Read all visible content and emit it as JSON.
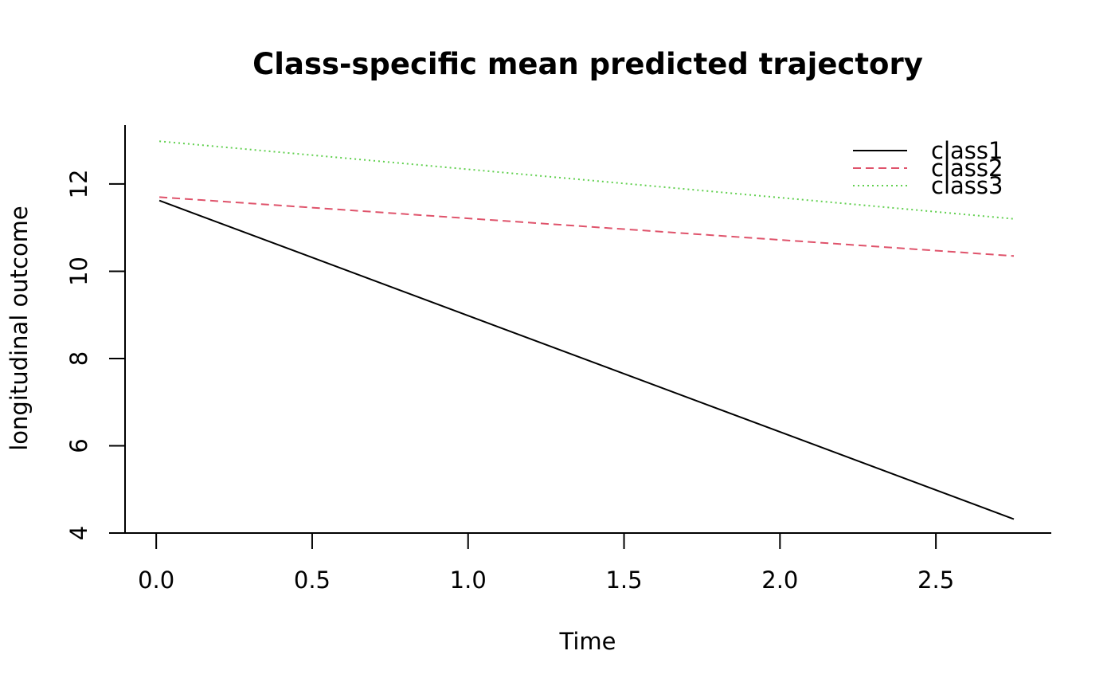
{
  "chart_data": {
    "type": "line",
    "title": "Class-specific mean predicted trajectory",
    "xlabel": "Time",
    "ylabel": "longitudinal outcome",
    "xlim": [
      -0.1,
      2.87
    ],
    "ylim": [
      4,
      13.35
    ],
    "x_ticks": [
      0.0,
      0.5,
      1.0,
      1.5,
      2.0,
      2.5
    ],
    "x_tick_labels": [
      "0.0",
      "0.5",
      "1.0",
      "1.5",
      "2.0",
      "2.5"
    ],
    "y_ticks": [
      4,
      6,
      8,
      10,
      12
    ],
    "y_tick_labels": [
      "4",
      "6",
      "8",
      "10",
      "12"
    ],
    "grid": false,
    "legend_position": "top-right",
    "series": [
      {
        "name": "class1",
        "color": "#000000",
        "linestyle": "solid",
        "x": [
          0.01,
          2.75
        ],
        "y": [
          11.62,
          4.32
        ]
      },
      {
        "name": "class2",
        "color": "#DF536B",
        "linestyle": "dashed",
        "x": [
          0.01,
          2.75
        ],
        "y": [
          11.7,
          10.35
        ]
      },
      {
        "name": "class3",
        "color": "#61D04F",
        "linestyle": "dotted",
        "x": [
          0.01,
          2.75
        ],
        "y": [
          12.98,
          11.2
        ]
      }
    ]
  }
}
